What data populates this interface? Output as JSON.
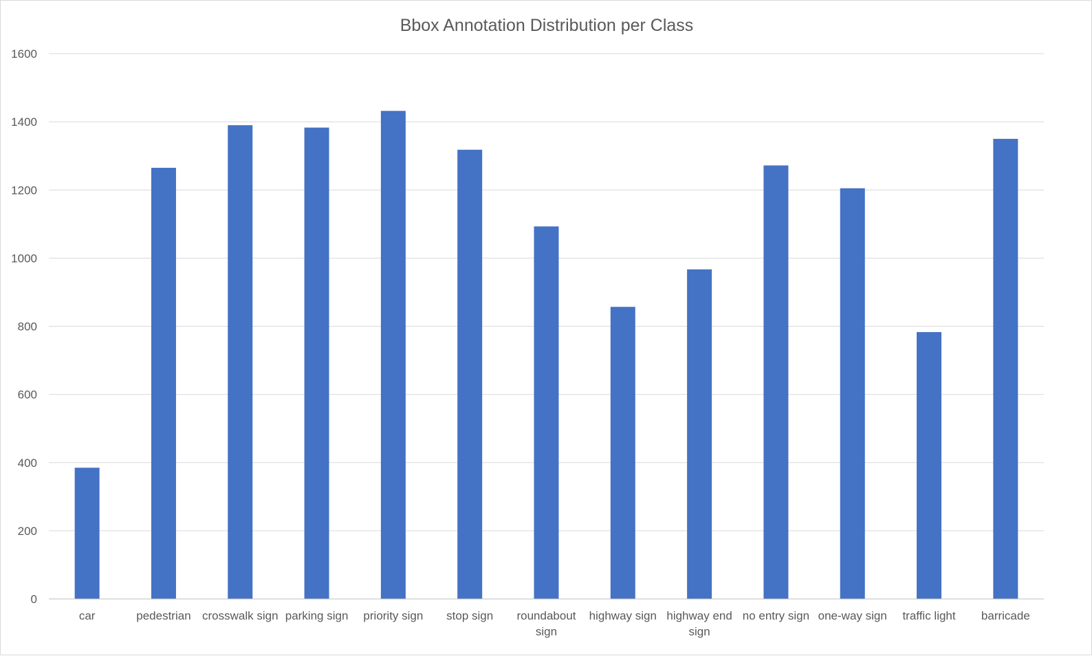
{
  "chart_data": {
    "type": "bar",
    "title": "Bbox Annotation Distribution per Class",
    "xlabel": "",
    "ylabel": "",
    "categories": [
      "car",
      "pedestrian",
      "crosswalk sign",
      "parking sign",
      "priority sign",
      "stop sign",
      "roundabout sign",
      "highway sign",
      "highway end sign",
      "no entry sign",
      "one-way sign",
      "traffic light",
      "barricade"
    ],
    "category_label_lines": [
      [
        "car"
      ],
      [
        "pedestrian"
      ],
      [
        "crosswalk sign"
      ],
      [
        "parking sign"
      ],
      [
        "priority sign"
      ],
      [
        "stop sign"
      ],
      [
        "roundabout",
        "sign"
      ],
      [
        "highway sign"
      ],
      [
        "highway end",
        "sign"
      ],
      [
        "no entry sign"
      ],
      [
        "one-way sign"
      ],
      [
        "traffic light"
      ],
      [
        "barricade"
      ]
    ],
    "series": [
      {
        "values": [
          385,
          1265,
          1390,
          1383,
          1432,
          1318,
          1093,
          857,
          967,
          1272,
          1205,
          783,
          1350
        ],
        "color": "#4472c4"
      }
    ],
    "ylim": [
      0,
      1600
    ],
    "yticks": [
      0,
      200,
      400,
      600,
      800,
      1000,
      1200,
      1400,
      1600
    ],
    "grid": true,
    "legend": "none"
  }
}
